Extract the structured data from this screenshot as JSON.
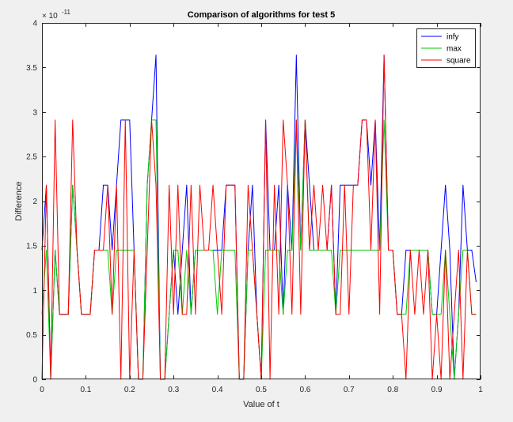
{
  "chart_data": {
    "type": "line",
    "title": "Comparison of algorithms for test 5",
    "xlabel": "Value of t",
    "ylabel": "Difference",
    "xlim": [
      0,
      1
    ],
    "ylim": [
      0,
      4
    ],
    "y_exponent_label": "× 10",
    "y_exponent_power": "-11",
    "xticks": [
      0,
      0.1,
      0.2,
      0.3,
      0.4,
      0.5,
      0.6,
      0.7,
      0.8,
      0.9,
      1
    ],
    "xtick_labels": [
      "0",
      "0.1",
      "0.2",
      "0.3",
      "0.4",
      "0.5",
      "0.6",
      "0.7",
      "0.8",
      "0.9",
      "1"
    ],
    "yticks": [
      0,
      0.5,
      1,
      1.5,
      2,
      2.5,
      3,
      3.5,
      4
    ],
    "ytick_labels": [
      "0",
      "0.5",
      "1",
      "1.5",
      "2",
      "2.5",
      "3",
      "3.5",
      "4"
    ],
    "grid": false,
    "legend_position": "top-right",
    "background": "#f0f0f0",
    "axes_background": "#ffffff",
    "series": [
      {
        "name": "infy",
        "color": "#0000ff",
        "x": [
          0,
          0.01,
          0.02,
          0.03,
          0.04,
          0.05,
          0.06,
          0.07,
          0.08,
          0.09,
          0.1,
          0.11,
          0.12,
          0.13,
          0.14,
          0.15,
          0.16,
          0.17,
          0.18,
          0.19,
          0.2,
          0.21,
          0.22,
          0.23,
          0.24,
          0.25,
          0.26,
          0.27,
          0.28,
          0.29,
          0.3,
          0.31,
          0.32,
          0.33,
          0.34,
          0.35,
          0.36,
          0.37,
          0.38,
          0.39,
          0.4,
          0.41,
          0.42,
          0.43,
          0.44,
          0.45,
          0.46,
          0.47,
          0.48,
          0.49,
          0.5,
          0.51,
          0.52,
          0.53,
          0.54,
          0.55,
          0.56,
          0.57,
          0.58,
          0.59,
          0.6,
          0.61,
          0.62,
          0.63,
          0.64,
          0.65,
          0.66,
          0.67,
          0.68,
          0.69,
          0.7,
          0.71,
          0.72,
          0.73,
          0.74,
          0.75,
          0.76,
          0.77,
          0.78,
          0.79,
          0.8,
          0.81,
          0.82,
          0.83,
          0.84,
          0.85,
          0.86,
          0.87,
          0.88,
          0.89,
          0.9,
          0.91,
          0.92,
          0.93,
          0.94,
          0.95,
          0.96,
          0.97,
          0.98,
          0.99
        ],
        "y": [
          1.45,
          2.18,
          0,
          1.45,
          0.73,
          0.73,
          0.73,
          2.18,
          1.45,
          0.73,
          0.73,
          0.73,
          1.45,
          1.45,
          2.18,
          2.18,
          1.45,
          2.18,
          2.91,
          2.91,
          2.91,
          1.45,
          0,
          0,
          2.18,
          2.91,
          3.64,
          0,
          0,
          0.73,
          1.45,
          0.73,
          1.45,
          2.18,
          0.73,
          1.45,
          1.45,
          1.45,
          1.45,
          1.45,
          1.45,
          1.45,
          2.18,
          2.18,
          2.18,
          0,
          0,
          1.45,
          2.18,
          0.73,
          0,
          2.91,
          1.45,
          1.45,
          2.18,
          0.73,
          2.18,
          1.45,
          3.64,
          1.45,
          2.91,
          2.18,
          1.45,
          1.45,
          1.45,
          1.45,
          2.18,
          0.73,
          2.18,
          2.18,
          2.18,
          2.18,
          2.18,
          2.91,
          2.91,
          2.18,
          2.91,
          1.45,
          3.64,
          1.45,
          1.45,
          0.73,
          0.73,
          1.45,
          1.45,
          1.45,
          1.45,
          1.45,
          1.45,
          0.73,
          0.73,
          1.45,
          2.18,
          1.45,
          0,
          0.73,
          2.18,
          1.45,
          1.45,
          1.09
        ]
      },
      {
        "name": "max",
        "color": "#00cc00",
        "x": [
          0,
          0.01,
          0.02,
          0.03,
          0.04,
          0.05,
          0.06,
          0.07,
          0.08,
          0.09,
          0.1,
          0.11,
          0.12,
          0.13,
          0.14,
          0.15,
          0.16,
          0.17,
          0.18,
          0.19,
          0.2,
          0.21,
          0.22,
          0.23,
          0.24,
          0.25,
          0.26,
          0.27,
          0.28,
          0.29,
          0.3,
          0.31,
          0.32,
          0.33,
          0.34,
          0.35,
          0.36,
          0.37,
          0.38,
          0.39,
          0.4,
          0.41,
          0.42,
          0.43,
          0.44,
          0.45,
          0.46,
          0.47,
          0.48,
          0.49,
          0.5,
          0.51,
          0.52,
          0.53,
          0.54,
          0.55,
          0.56,
          0.57,
          0.58,
          0.59,
          0.6,
          0.61,
          0.62,
          0.63,
          0.64,
          0.65,
          0.66,
          0.67,
          0.68,
          0.69,
          0.7,
          0.71,
          0.72,
          0.73,
          0.74,
          0.75,
          0.76,
          0.77,
          0.78,
          0.79,
          0.8,
          0.81,
          0.82,
          0.83,
          0.84,
          0.85,
          0.86,
          0.87,
          0.88,
          0.89,
          0.9,
          0.91,
          0.92,
          0.93,
          0.94,
          0.95,
          0.96,
          0.97,
          0.98,
          0.99
        ],
        "y": [
          0.73,
          1.45,
          0,
          1.45,
          0.73,
          0.73,
          0.73,
          2.18,
          1.45,
          0.73,
          0.73,
          0.73,
          1.45,
          1.45,
          1.45,
          1.45,
          0.73,
          1.45,
          1.45,
          1.45,
          1.45,
          1.45,
          0,
          0,
          2.18,
          2.91,
          2.91,
          0,
          0,
          0.73,
          1.45,
          1.45,
          0.73,
          1.45,
          0.73,
          1.45,
          1.45,
          1.45,
          1.45,
          1.45,
          0.73,
          1.45,
          1.45,
          1.45,
          1.45,
          0,
          0,
          1.45,
          1.45,
          0.73,
          0,
          1.45,
          1.45,
          1.45,
          1.45,
          0.73,
          1.45,
          1.45,
          2.91,
          1.45,
          2.91,
          1.45,
          1.45,
          1.45,
          1.45,
          1.45,
          1.45,
          0.73,
          1.45,
          1.45,
          1.45,
          1.45,
          1.45,
          1.45,
          1.45,
          1.45,
          1.45,
          1.45,
          2.91,
          1.45,
          1.45,
          0.73,
          0.73,
          0.73,
          1.45,
          1.45,
          1.45,
          1.45,
          1.45,
          0.73,
          0.73,
          0.73,
          1.45,
          0.73,
          0,
          0.73,
          1.45,
          1.45,
          0.73,
          0.73
        ]
      },
      {
        "name": "square",
        "color": "#ff0000",
        "x": [
          0,
          0.01,
          0.02,
          0.03,
          0.04,
          0.05,
          0.06,
          0.07,
          0.08,
          0.09,
          0.1,
          0.11,
          0.12,
          0.13,
          0.14,
          0.15,
          0.16,
          0.17,
          0.18,
          0.19,
          0.2,
          0.21,
          0.22,
          0.23,
          0.24,
          0.25,
          0.26,
          0.27,
          0.28,
          0.29,
          0.3,
          0.31,
          0.32,
          0.33,
          0.34,
          0.35,
          0.36,
          0.37,
          0.38,
          0.39,
          0.4,
          0.41,
          0.42,
          0.43,
          0.44,
          0.45,
          0.46,
          0.47,
          0.48,
          0.49,
          0.5,
          0.51,
          0.52,
          0.53,
          0.54,
          0.55,
          0.56,
          0.57,
          0.58,
          0.59,
          0.6,
          0.61,
          0.62,
          0.63,
          0.64,
          0.65,
          0.66,
          0.67,
          0.68,
          0.69,
          0.7,
          0.71,
          0.72,
          0.73,
          0.74,
          0.75,
          0.76,
          0.77,
          0.78,
          0.79,
          0.8,
          0.81,
          0.82,
          0.83,
          0.84,
          0.85,
          0.86,
          0.87,
          0.88,
          0.89,
          0.9,
          0.91,
          0.92,
          0.93,
          0.94,
          0.95,
          0.96,
          0.97,
          0.98,
          0.99
        ],
        "y": [
          0,
          2.18,
          0,
          2.91,
          0.73,
          0.73,
          0.73,
          2.91,
          1.45,
          0.73,
          0.73,
          0.73,
          1.45,
          1.45,
          1.45,
          2.18,
          0.73,
          2.18,
          0,
          2.91,
          0,
          1.45,
          0,
          0,
          1.45,
          2.91,
          2.18,
          0,
          0,
          2.18,
          0.73,
          2.18,
          0.73,
          0.73,
          2.18,
          0.73,
          2.18,
          1.45,
          1.45,
          2.18,
          1.45,
          0.73,
          2.18,
          2.18,
          2.18,
          0,
          0,
          2.18,
          1.45,
          0.73,
          0,
          2.91,
          0,
          2.18,
          0.73,
          2.91,
          2.18,
          0.73,
          2.91,
          0.73,
          2.91,
          1.45,
          2.18,
          1.45,
          2.18,
          1.45,
          2.18,
          0.73,
          0.73,
          2.18,
          0.73,
          2.18,
          2.18,
          2.91,
          2.91,
          1.45,
          2.91,
          0.73,
          3.64,
          1.45,
          1.45,
          0.73,
          0.73,
          0,
          1.45,
          0.73,
          1.45,
          0.73,
          1.45,
          0,
          0.73,
          0,
          1.45,
          0,
          0.73,
          1.45,
          0,
          1.45,
          0.73,
          0.73
        ]
      }
    ]
  }
}
